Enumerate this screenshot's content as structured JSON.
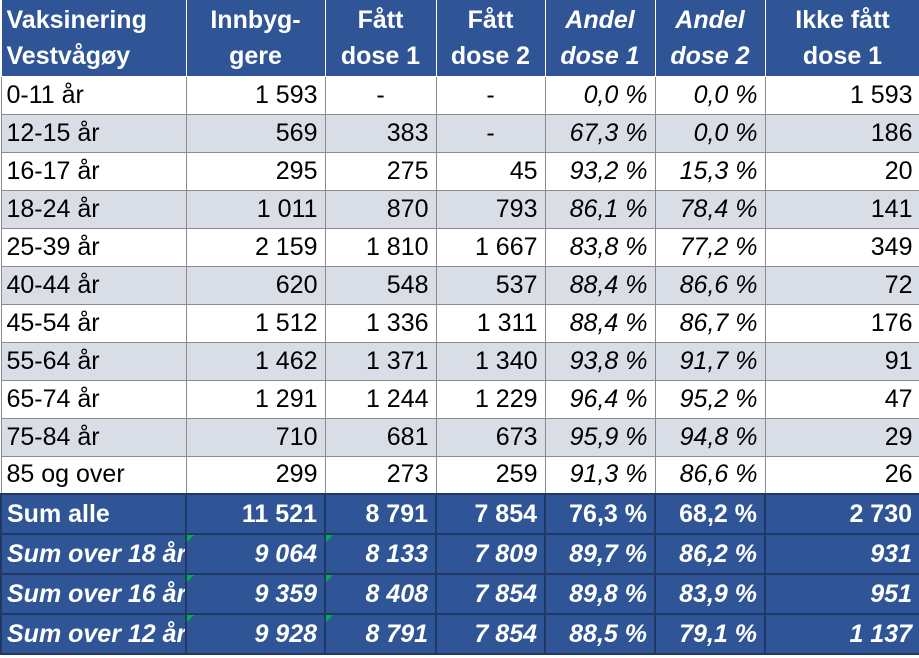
{
  "header": [
    "Vaksinering Vestvågøy",
    "Innbyg-gere",
    "Fått dose 1",
    "Fått dose 2",
    "Andel dose 1",
    "Andel dose 2",
    "Ikke fått dose 1"
  ],
  "header_lines": [
    [
      "Vaksinering",
      "Vestvågøy"
    ],
    [
      "Innbyg-",
      "gere"
    ],
    [
      "Fått",
      "dose 1"
    ],
    [
      "Fått",
      "dose 2"
    ],
    [
      "Andel",
      "dose 1"
    ],
    [
      "Andel",
      "dose 2"
    ],
    [
      "Ikke fått",
      "dose 1"
    ]
  ],
  "rows": [
    [
      "0-11 år",
      "1 593",
      "-",
      "-",
      "0,0 %",
      "0,0 %",
      "1 593"
    ],
    [
      "12-15 år",
      "569",
      "383",
      "-",
      "67,3 %",
      "0,0 %",
      "186"
    ],
    [
      "16-17 år",
      "295",
      "275",
      "45",
      "93,2 %",
      "15,3 %",
      "20"
    ],
    [
      "18-24 år",
      "1 011",
      "870",
      "793",
      "86,1 %",
      "78,4 %",
      "141"
    ],
    [
      "25-39 år",
      "2 159",
      "1 810",
      "1 667",
      "83,8 %",
      "77,2 %",
      "349"
    ],
    [
      "40-44 år",
      "620",
      "548",
      "537",
      "88,4 %",
      "86,6 %",
      "72"
    ],
    [
      "45-54 år",
      "1 512",
      "1 336",
      "1 311",
      "88,4 %",
      "86,7 %",
      "176"
    ],
    [
      "55-64 år",
      "1 462",
      "1 371",
      "1 340",
      "93,8 %",
      "91,7 %",
      "91"
    ],
    [
      "65-74 år",
      "1 291",
      "1 244",
      "1 229",
      "96,4 %",
      "95,2 %",
      "47"
    ],
    [
      "75-84 år",
      "710",
      "681",
      "673",
      "95,9 %",
      "94,8 %",
      "29"
    ],
    [
      "85 og over",
      "299",
      "273",
      "259",
      "91,3 %",
      "86,6 %",
      "26"
    ]
  ],
  "sums": [
    [
      "Sum alle",
      "11 521",
      "8 791",
      "7 854",
      "76,3 %",
      "68,2 %",
      "2 730"
    ],
    [
      "Sum over 18 år",
      "9 064",
      "8 133",
      "7 809",
      "89,7 %",
      "86,2 %",
      "931"
    ],
    [
      "Sum over 16 år",
      "9 359",
      "8 408",
      "7 854",
      "89,8 %",
      "83,9 %",
      "951"
    ],
    [
      "Sum over 12 år",
      "9 928",
      "8 791",
      "7 854",
      "88,5 %",
      "79,1 %",
      "1 137"
    ]
  ],
  "colors": {
    "header_bg": "#2f5597",
    "band_bg": "#d9dde6",
    "error_marker": "#00b050"
  }
}
